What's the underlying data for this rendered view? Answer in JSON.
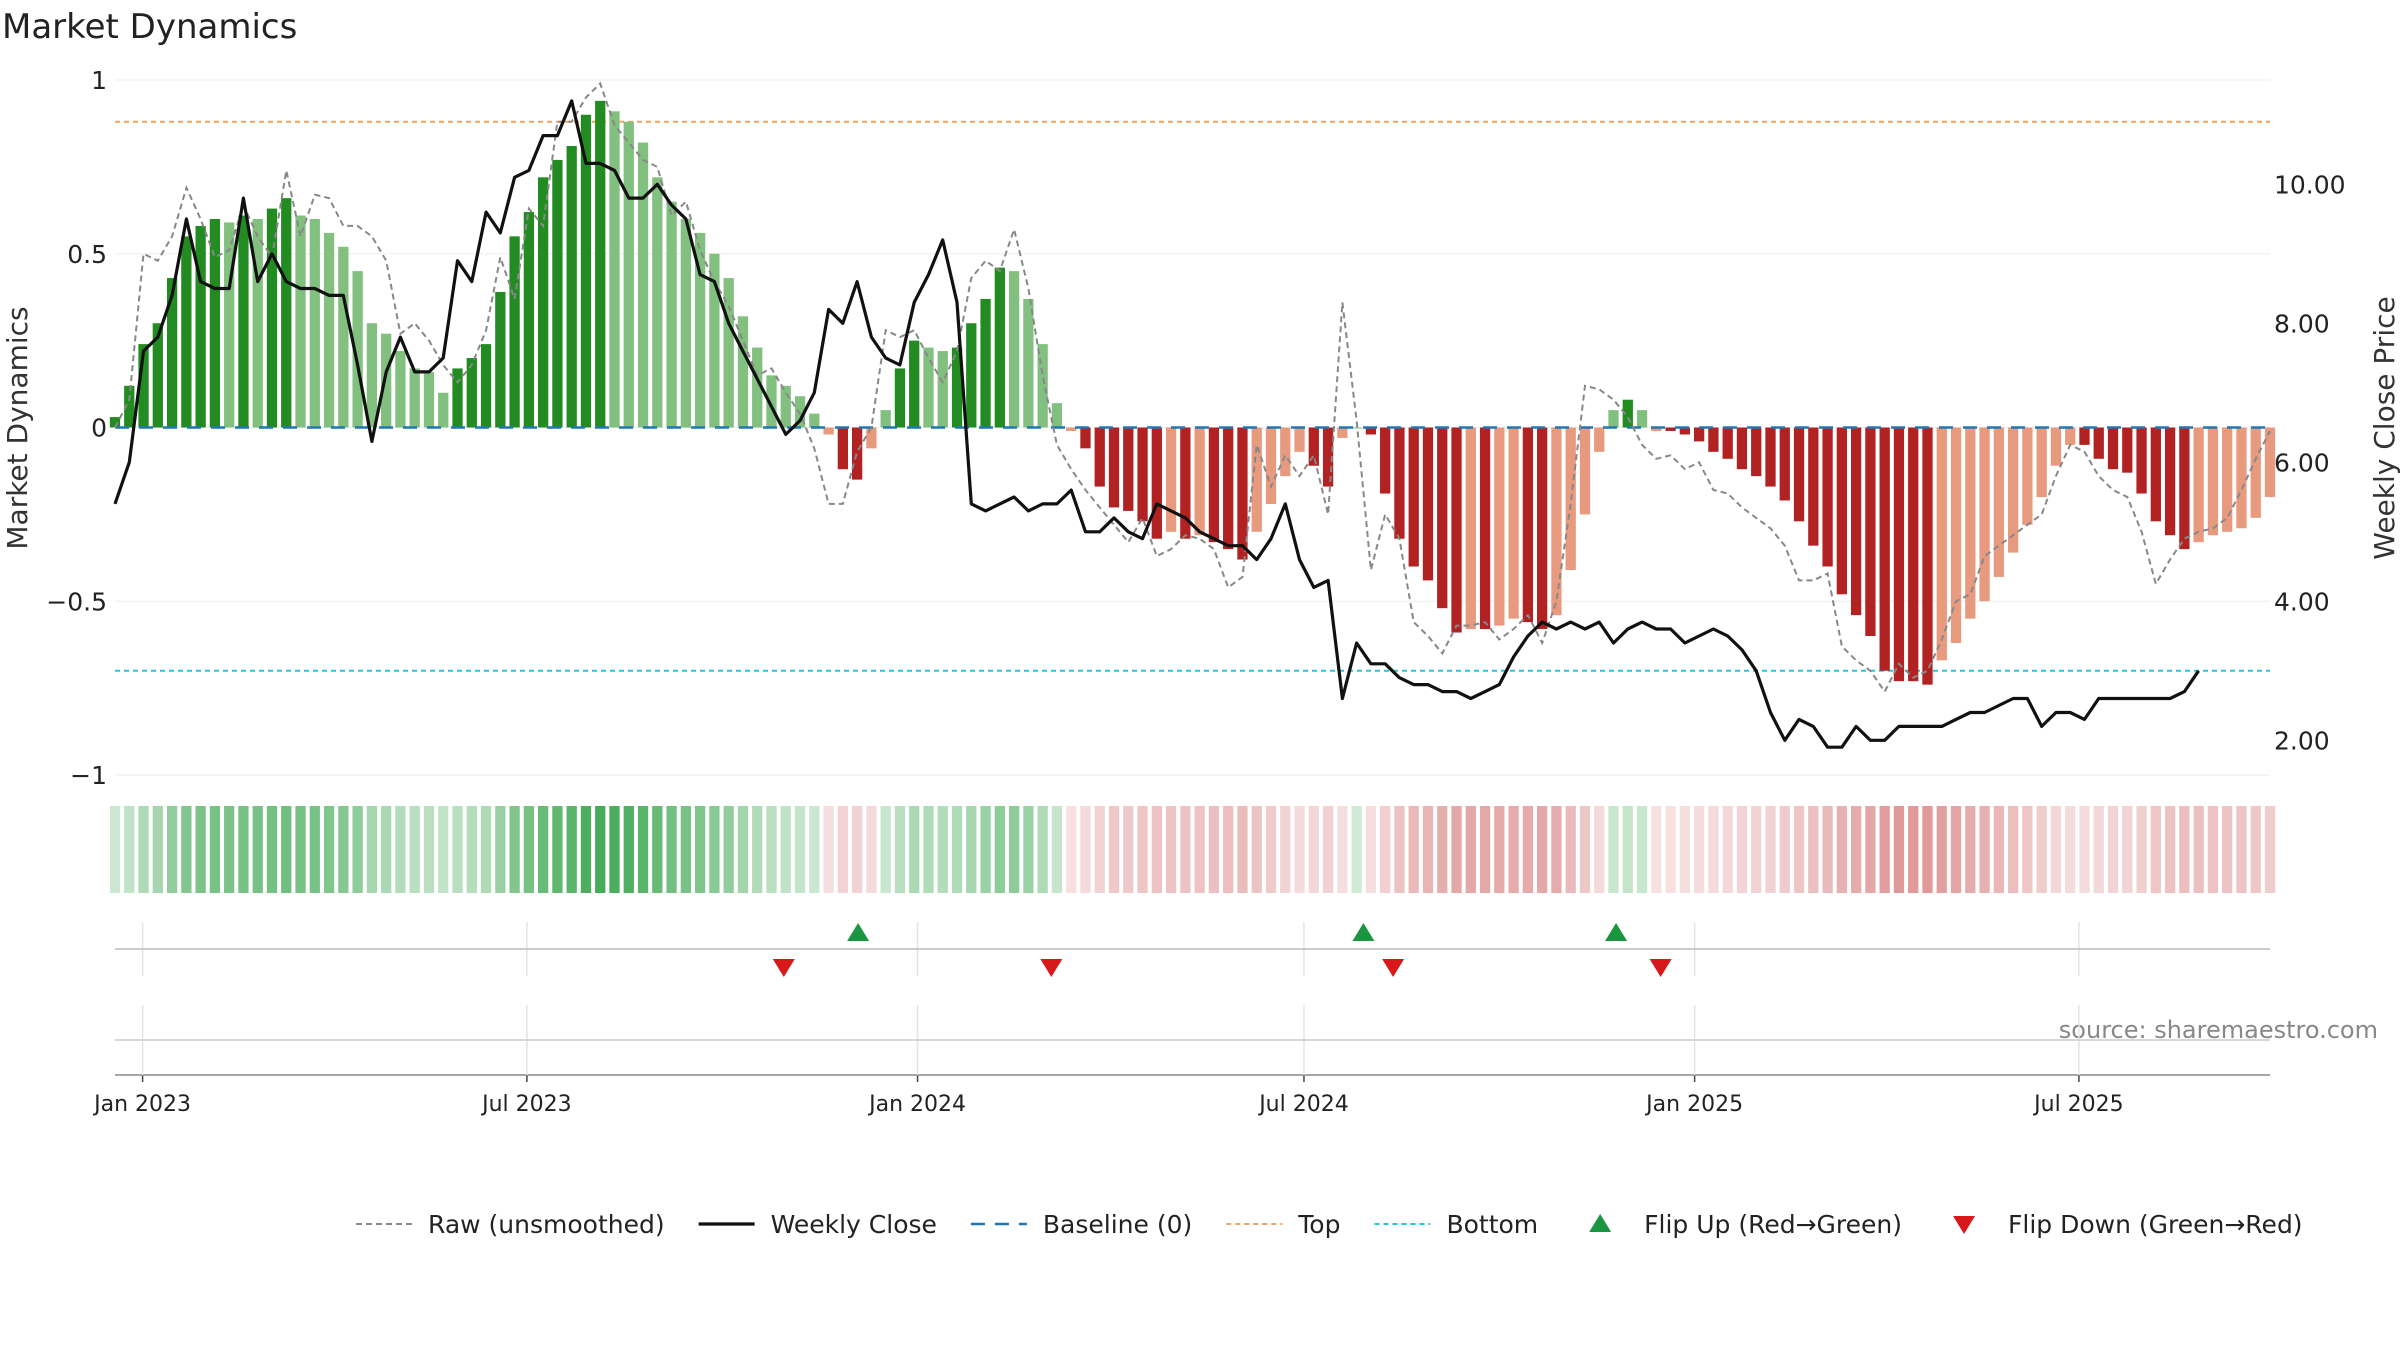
{
  "chart_data": {
    "type": "bar",
    "title": "Market Dynamics",
    "ylabel_left": "Market Dynamics",
    "ylabel_right": "Weekly Close Price",
    "source": "source: sharemaestro.com",
    "x_ticks": [
      "Jan 2023",
      "Jul 2023",
      "Jan 2024",
      "Jul 2024",
      "Jan 2025",
      "Jul 2025"
    ],
    "y_ticks_left": [
      "1",
      "0.5",
      "0",
      "−0.5",
      "−1"
    ],
    "y_ticks_right": [
      "10.00",
      "8.00",
      "6.00",
      "4.00",
      "2.00"
    ],
    "ylim_left": [
      -1,
      1
    ],
    "ylim_right": [
      1.5,
      11.5
    ],
    "date_range": [
      "2022-12-19",
      "2025-09-29"
    ],
    "top_level": 0.88,
    "bottom_level": -0.7,
    "legend": {
      "raw": "Raw (unsmoothed)",
      "close": "Weekly Close",
      "baseline": "Baseline (0)",
      "top": "Top",
      "bottom": "Bottom",
      "flip_up": "Flip Up (Red→Green)",
      "flip_down": "Flip Down (Green→Red)"
    },
    "colors": {
      "green_strong": "#228b22",
      "green_light": "#81c07f",
      "red_strong": "#b22222",
      "red_light": "#e89a7e",
      "raw": "#888888",
      "close": "#111111",
      "baseline": "#1f77b4",
      "top": "#f4a261",
      "bottom": "#26c6da",
      "flip_up": "#1a9641",
      "flip_down": "#d7191c"
    },
    "smoothed": [
      0.03,
      0.12,
      0.24,
      0.3,
      0.43,
      0.55,
      0.58,
      0.6,
      0.59,
      0.61,
      0.6,
      0.63,
      0.66,
      0.61,
      0.6,
      0.56,
      0.52,
      0.45,
      0.3,
      0.27,
      0.22,
      0.17,
      0.16,
      0.1,
      0.17,
      0.2,
      0.24,
      0.39,
      0.55,
      0.62,
      0.72,
      0.77,
      0.81,
      0.9,
      0.94,
      0.91,
      0.88,
      0.82,
      0.72,
      0.65,
      0.6,
      0.56,
      0.5,
      0.43,
      0.32,
      0.23,
      0.15,
      0.12,
      0.09,
      0.04,
      -0.02,
      -0.12,
      -0.15,
      -0.06,
      0.05,
      0.17,
      0.25,
      0.23,
      0.22,
      0.23,
      0.3,
      0.37,
      0.46,
      0.45,
      0.37,
      0.24,
      0.07,
      -0.01,
      -0.06,
      -0.17,
      -0.23,
      -0.24,
      -0.27,
      -0.32,
      -0.3,
      -0.32,
      -0.31,
      -0.33,
      -0.35,
      -0.38,
      -0.3,
      -0.22,
      -0.14,
      -0.07,
      -0.11,
      -0.17,
      -0.03,
      0.0,
      -0.02,
      -0.19,
      -0.32,
      -0.4,
      -0.44,
      -0.52,
      -0.59,
      -0.58,
      -0.58,
      -0.57,
      -0.55,
      -0.56,
      -0.58,
      -0.54,
      -0.41,
      -0.25,
      -0.07,
      0.05,
      0.08,
      0.05,
      -0.01,
      -0.01,
      -0.02,
      -0.04,
      -0.07,
      -0.09,
      -0.12,
      -0.14,
      -0.17,
      -0.21,
      -0.27,
      -0.34,
      -0.4,
      -0.48,
      -0.54,
      -0.6,
      -0.7,
      -0.73,
      -0.73,
      -0.74,
      -0.67,
      -0.62,
      -0.55,
      -0.5,
      -0.43,
      -0.36,
      -0.28,
      -0.2,
      -0.11,
      -0.05,
      -0.05,
      -0.09,
      -0.12,
      -0.13,
      -0.19,
      -0.27,
      -0.31,
      -0.35,
      -0.33,
      -0.31,
      -0.3,
      -0.29,
      -0.26,
      -0.2
    ],
    "raw": [
      0.0,
      0.08,
      0.5,
      0.48,
      0.55,
      0.69,
      0.6,
      0.49,
      0.51,
      0.64,
      0.55,
      0.49,
      0.74,
      0.55,
      0.67,
      0.66,
      0.58,
      0.58,
      0.55,
      0.48,
      0.27,
      0.3,
      0.25,
      0.18,
      0.13,
      0.18,
      0.28,
      0.49,
      0.37,
      0.63,
      0.58,
      0.88,
      0.88,
      0.95,
      0.99,
      0.87,
      0.82,
      0.77,
      0.75,
      0.61,
      0.65,
      0.51,
      0.42,
      0.35,
      0.25,
      0.15,
      0.17,
      0.1,
      0.04,
      -0.06,
      -0.22,
      -0.22,
      -0.07,
      0.0,
      0.28,
      0.26,
      0.28,
      0.2,
      0.13,
      0.22,
      0.43,
      0.48,
      0.45,
      0.57,
      0.4,
      0.15,
      -0.05,
      -0.12,
      -0.18,
      -0.23,
      -0.28,
      -0.33,
      -0.26,
      -0.37,
      -0.35,
      -0.31,
      -0.32,
      -0.35,
      -0.46,
      -0.43,
      -0.05,
      -0.17,
      -0.08,
      -0.14,
      -0.08,
      -0.25,
      0.36,
      0.02,
      -0.41,
      -0.25,
      -0.32,
      -0.56,
      -0.6,
      -0.65,
      -0.57,
      -0.57,
      -0.56,
      -0.61,
      -0.58,
      -0.54,
      -0.62,
      -0.5,
      -0.22,
      0.12,
      0.11,
      0.08,
      0.03,
      -0.05,
      -0.09,
      -0.08,
      -0.12,
      -0.1,
      -0.18,
      -0.19,
      -0.23,
      -0.26,
      -0.29,
      -0.34,
      -0.44,
      -0.44,
      -0.42,
      -0.63,
      -0.67,
      -0.7,
      -0.76,
      -0.68,
      -0.72,
      -0.7,
      -0.61,
      -0.5,
      -0.48,
      -0.37,
      -0.34,
      -0.31,
      -0.28,
      -0.25,
      -0.14,
      -0.05,
      -0.07,
      -0.14,
      -0.18,
      -0.2,
      -0.3,
      -0.45,
      -0.38,
      -0.32,
      -0.3,
      -0.29,
      -0.26,
      -0.18,
      -0.09,
      -0.01
    ],
    "close": [
      5.4,
      6.0,
      7.6,
      7.8,
      8.4,
      9.5,
      8.6,
      8.5,
      8.5,
      9.8,
      8.6,
      9.0,
      8.6,
      8.5,
      8.5,
      8.4,
      8.4,
      7.4,
      6.3,
      7.3,
      7.8,
      7.3,
      7.3,
      7.5,
      8.9,
      8.6,
      9.6,
      9.3,
      10.1,
      10.2,
      10.7,
      10.7,
      11.2,
      10.3,
      10.3,
      10.2,
      9.8,
      9.8,
      10.0,
      9.7,
      9.5,
      8.7,
      8.6,
      8.0,
      7.6,
      7.2,
      6.8,
      6.4,
      6.6,
      7.0,
      8.2,
      8.0,
      8.6,
      7.8,
      7.5,
      7.4,
      8.3,
      8.7,
      9.2,
      8.3,
      5.4,
      5.3,
      5.4,
      5.5,
      5.3,
      5.4,
      5.4,
      5.6,
      5.0,
      5.0,
      5.2,
      5.0,
      4.9,
      5.4,
      5.3,
      5.2,
      5.0,
      4.9,
      4.8,
      4.8,
      4.6,
      4.9,
      5.4,
      4.6,
      4.2,
      4.3,
      2.6,
      3.4,
      3.1,
      3.1,
      2.9,
      2.8,
      2.8,
      2.7,
      2.7,
      2.6,
      2.7,
      2.8,
      3.2,
      3.5,
      3.7,
      3.6,
      3.7,
      3.6,
      3.7,
      3.4,
      3.6,
      3.7,
      3.6,
      3.6,
      3.4,
      3.5,
      3.6,
      3.5,
      3.3,
      3.0,
      2.4,
      2.0,
      2.3,
      2.2,
      1.9,
      1.9,
      2.2,
      2.0,
      2.0,
      2.2,
      2.2,
      2.2,
      2.2,
      2.3,
      2.4,
      2.4,
      2.5,
      2.6,
      2.6,
      2.2,
      2.4,
      2.4,
      2.3,
      2.6,
      2.6,
      2.6,
      2.6,
      2.6,
      2.6,
      2.7,
      3.0
    ],
    "flip_up_dates": [
      "2023-12-04",
      "2024-07-29",
      "2024-11-25"
    ],
    "flip_down_dates": [
      "2023-10-30",
      "2024-03-04",
      "2024-08-12",
      "2024-12-16"
    ]
  }
}
